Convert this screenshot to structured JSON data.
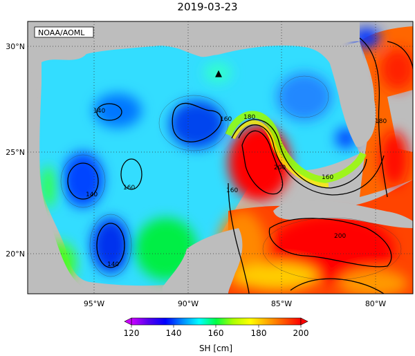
{
  "title": "2019-03-23",
  "credit": "NOAA/AOML",
  "axes": {
    "x_ticks": [
      {
        "label": "95°W",
        "lon": -95
      },
      {
        "label": "90°W",
        "lon": -90
      },
      {
        "label": "85°W",
        "lon": -85
      },
      {
        "label": "80°W",
        "lon": -80
      }
    ],
    "y_ticks": [
      {
        "label": "30°N",
        "lat": 30
      },
      {
        "label": "25°N",
        "lat": 25
      },
      {
        "label": "20°N",
        "lat": 20
      }
    ],
    "lon_range": [
      -98,
      -78
    ],
    "lat_range": [
      18,
      31
    ]
  },
  "colorbar": {
    "label": "SH [cm]",
    "min": 120,
    "max": 200,
    "tick_labels": [
      "120",
      "140",
      "160",
      "180",
      "200"
    ],
    "colors": [
      "#cc00ff",
      "#5500ee",
      "#0000ff",
      "#0088ff",
      "#00ffff",
      "#00ff44",
      "#aaff00",
      "#ffff00",
      "#ffaa00",
      "#ff5500",
      "#ff0000"
    ]
  },
  "contour_labels": [
    "140",
    "140",
    "140",
    "160",
    "160",
    "160",
    "160",
    "180",
    "180",
    "200",
    "200"
  ],
  "marker": {
    "symbol": "▲"
  }
}
